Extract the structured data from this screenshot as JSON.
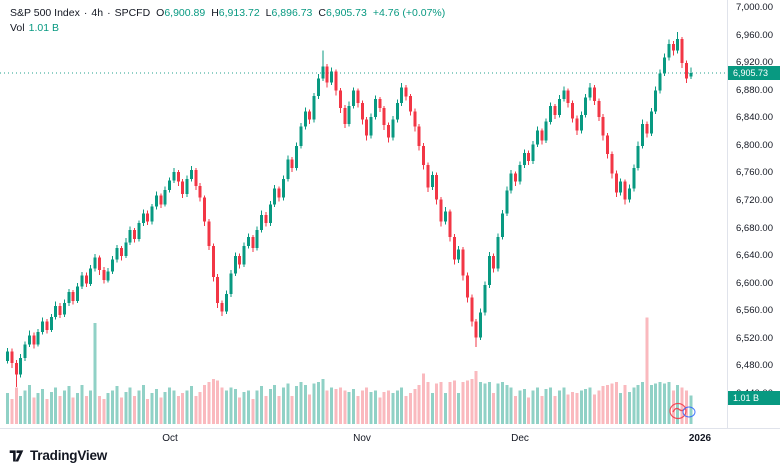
{
  "header": {
    "symbol": "S&P 500 Index",
    "separator": "·",
    "interval": "4h",
    "source": "SPCFD",
    "ohlc": {
      "o_label": "O",
      "o": "6,900.89",
      "h_label": "H",
      "h": "6,913.72",
      "l_label": "L",
      "l": "6,896.73",
      "c_label": "C",
      "c": "6,905.73"
    },
    "change": "+4.76 (+0.07%)",
    "vol_label": "Vol",
    "vol_value": "1.01 B"
  },
  "axis_badges": {
    "last_price": "6,905.73",
    "volume": "1.01 B"
  },
  "footer": {
    "brand": "TradingView"
  },
  "chart_data": {
    "type": "candlestick",
    "title": "S&P 500 Index · 4h · SPCFD",
    "last_price": 6905.73,
    "ohlc_format": "[open, high, low, close, volume_billions]",
    "colors": {
      "up": "#089981",
      "down": "#F23645",
      "vol_up": "rgba(8,153,129,0.45)",
      "vol_down": "rgba(242,54,69,0.35)"
    },
    "y_axis": {
      "min": 6440,
      "max": 7000,
      "step": 40,
      "ticks": [
        {
          "text": "7,000.00",
          "value": 7000
        },
        {
          "text": "6,960.00",
          "value": 6960
        },
        {
          "text": "6,920.00",
          "value": 6920
        },
        {
          "text": "6,880.00",
          "value": 6880
        },
        {
          "text": "6,840.00",
          "value": 6840
        },
        {
          "text": "6,800.00",
          "value": 6800
        },
        {
          "text": "6,760.00",
          "value": 6760
        },
        {
          "text": "6,720.00",
          "value": 6720
        },
        {
          "text": "6,680.00",
          "value": 6680
        },
        {
          "text": "6,640.00",
          "value": 6640
        },
        {
          "text": "6,600.00",
          "value": 6600
        },
        {
          "text": "6,560.00",
          "value": 6560
        },
        {
          "text": "6,520.00",
          "value": 6520
        },
        {
          "text": "6,480.00",
          "value": 6480
        },
        {
          "text": "6,440.00",
          "value": 6440
        }
      ]
    },
    "x_axis": {
      "ticks": [
        {
          "text": "Oct",
          "index": 37
        },
        {
          "text": "Nov",
          "index": 81
        },
        {
          "text": "Dec",
          "index": 117
        },
        {
          "text": "2026",
          "index": 158,
          "bold": true
        }
      ]
    },
    "candles": [
      [
        6488,
        6507,
        6484,
        6502,
        1.1
      ],
      [
        6502,
        6506,
        6478,
        6485,
        0.9
      ],
      [
        6485,
        6489,
        6450,
        6468,
        1.3
      ],
      [
        6468,
        6498,
        6464,
        6492,
        1.0
      ],
      [
        6492,
        6516,
        6488,
        6512,
        1.2
      ],
      [
        6512,
        6532,
        6508,
        6525,
        1.4
      ],
      [
        6525,
        6529,
        6506,
        6512,
        0.95
      ],
      [
        6512,
        6534,
        6509,
        6530,
        1.1
      ],
      [
        6530,
        6551,
        6526,
        6545,
        1.25
      ],
      [
        6545,
        6549,
        6528,
        6533,
        0.9
      ],
      [
        6533,
        6556,
        6530,
        6552,
        1.15
      ],
      [
        6552,
        6574,
        6548,
        6568,
        1.3
      ],
      [
        6568,
        6572,
        6550,
        6555,
        1.0
      ],
      [
        6555,
        6577,
        6552,
        6572,
        1.2
      ],
      [
        6572,
        6592,
        6568,
        6588,
        1.35
      ],
      [
        6588,
        6591,
        6570,
        6575,
        0.95
      ],
      [
        6575,
        6601,
        6572,
        6596,
        1.1
      ],
      [
        6596,
        6617,
        6592,
        6612,
        1.4
      ],
      [
        6612,
        6616,
        6595,
        6600,
        1.0
      ],
      [
        6600,
        6627,
        6597,
        6622,
        1.2
      ],
      [
        6622,
        6643,
        6618,
        6638,
        3.6
      ],
      [
        6638,
        6641,
        6613,
        6620,
        1.0
      ],
      [
        6620,
        6624,
        6600,
        6605,
        0.9
      ],
      [
        6605,
        6623,
        6602,
        6618,
        1.1
      ],
      [
        6618,
        6640,
        6614,
        6635,
        1.2
      ],
      [
        6635,
        6656,
        6631,
        6652,
        1.35
      ],
      [
        6652,
        6655,
        6634,
        6640,
        0.95
      ],
      [
        6640,
        6666,
        6637,
        6660,
        1.15
      ],
      [
        6660,
        6683,
        6656,
        6678,
        1.3
      ],
      [
        6678,
        6681,
        6660,
        6665,
        1.0
      ],
      [
        6665,
        6692,
        6661,
        6688,
        1.2
      ],
      [
        6688,
        6708,
        6684,
        6702,
        1.4
      ],
      [
        6702,
        6706,
        6685,
        6690,
        0.9
      ],
      [
        6690,
        6716,
        6686,
        6712,
        1.1
      ],
      [
        6712,
        6734,
        6708,
        6728,
        1.25
      ],
      [
        6728,
        6731,
        6710,
        6715,
        0.95
      ],
      [
        6715,
        6741,
        6712,
        6736,
        1.15
      ],
      [
        6736,
        6754,
        6732,
        6750,
        1.3
      ],
      [
        6750,
        6768,
        6746,
        6762,
        1.2
      ],
      [
        6762,
        6765,
        6742,
        6748,
        1.0
      ],
      [
        6748,
        6752,
        6724,
        6730,
        1.1
      ],
      [
        6730,
        6757,
        6726,
        6752,
        1.2
      ],
      [
        6752,
        6771,
        6748,
        6765,
        1.35
      ],
      [
        6765,
        6768,
        6736,
        6742,
        1.0
      ],
      [
        6742,
        6746,
        6719,
        6725,
        1.15
      ],
      [
        6725,
        6728,
        6684,
        6690,
        1.4
      ],
      [
        6690,
        6694,
        6649,
        6655,
        1.5
      ],
      [
        6655,
        6658,
        6603,
        6610,
        1.6
      ],
      [
        6610,
        6614,
        6565,
        6572,
        1.55
      ],
      [
        6572,
        6576,
        6553,
        6560,
        1.3
      ],
      [
        6560,
        6590,
        6556,
        6585,
        1.2
      ],
      [
        6585,
        6620,
        6581,
        6615,
        1.3
      ],
      [
        6615,
        6645,
        6611,
        6640,
        1.25
      ],
      [
        6640,
        6644,
        6622,
        6628,
        0.95
      ],
      [
        6628,
        6660,
        6624,
        6655,
        1.15
      ],
      [
        6655,
        6673,
        6651,
        6668,
        1.2
      ],
      [
        6668,
        6671,
        6646,
        6652,
        0.9
      ],
      [
        6652,
        6683,
        6648,
        6678,
        1.2
      ],
      [
        6678,
        6706,
        6674,
        6700,
        1.35
      ],
      [
        6700,
        6704,
        6683,
        6688,
        1.0
      ],
      [
        6688,
        6720,
        6684,
        6715,
        1.25
      ],
      [
        6715,
        6743,
        6711,
        6738,
        1.4
      ],
      [
        6738,
        6741,
        6719,
        6725,
        1.0
      ],
      [
        6725,
        6757,
        6721,
        6752,
        1.3
      ],
      [
        6752,
        6786,
        6748,
        6780,
        1.45
      ],
      [
        6780,
        6784,
        6762,
        6768,
        1.0
      ],
      [
        6768,
        6805,
        6764,
        6800,
        1.35
      ],
      [
        6800,
        6833,
        6796,
        6828,
        1.5
      ],
      [
        6828,
        6856,
        6824,
        6850,
        1.4
      ],
      [
        6850,
        6853,
        6832,
        6838,
        1.05
      ],
      [
        6838,
        6877,
        6834,
        6872,
        1.45
      ],
      [
        6872,
        6904,
        6868,
        6898,
        1.5
      ],
      [
        6898,
        6938,
        6894,
        6915,
        1.6
      ],
      [
        6915,
        6919,
        6885,
        6892,
        1.2
      ],
      [
        6892,
        6914,
        6888,
        6908,
        1.3
      ],
      [
        6908,
        6911,
        6873,
        6880,
        1.25
      ],
      [
        6880,
        6884,
        6848,
        6855,
        1.3
      ],
      [
        6855,
        6859,
        6826,
        6832,
        1.2
      ],
      [
        6832,
        6864,
        6828,
        6858,
        1.15
      ],
      [
        6858,
        6885,
        6854,
        6880,
        1.25
      ],
      [
        6880,
        6883,
        6856,
        6862,
        1.0
      ],
      [
        6862,
        6866,
        6831,
        6838,
        1.2
      ],
      [
        6838,
        6842,
        6808,
        6815,
        1.3
      ],
      [
        6815,
        6847,
        6811,
        6842,
        1.15
      ],
      [
        6842,
        6873,
        6838,
        6868,
        1.2
      ],
      [
        6868,
        6871,
        6849,
        6855,
        0.95
      ],
      [
        6855,
        6858,
        6823,
        6830,
        1.15
      ],
      [
        6830,
        6834,
        6805,
        6812,
        1.2
      ],
      [
        6812,
        6843,
        6808,
        6838,
        1.1
      ],
      [
        6838,
        6867,
        6834,
        6862,
        1.2
      ],
      [
        6862,
        6891,
        6858,
        6885,
        1.3
      ],
      [
        6885,
        6888,
        6866,
        6872,
        1.0
      ],
      [
        6872,
        6875,
        6844,
        6850,
        1.1
      ],
      [
        6850,
        6854,
        6821,
        6828,
        1.25
      ],
      [
        6828,
        6832,
        6793,
        6800,
        1.4
      ],
      [
        6800,
        6804,
        6766,
        6772,
        1.8
      ],
      [
        6772,
        6776,
        6733,
        6740,
        1.5
      ],
      [
        6740,
        6763,
        6736,
        6758,
        1.1
      ],
      [
        6758,
        6761,
        6715,
        6722,
        1.45
      ],
      [
        6722,
        6726,
        6683,
        6690,
        1.5
      ],
      [
        6690,
        6711,
        6686,
        6705,
        1.1
      ],
      [
        6705,
        6708,
        6661,
        6668,
        1.5
      ],
      [
        6668,
        6672,
        6628,
        6635,
        1.55
      ],
      [
        6635,
        6655,
        6630,
        6650,
        1.1
      ],
      [
        6650,
        6653,
        6605,
        6612,
        1.5
      ],
      [
        6612,
        6616,
        6573,
        6580,
        1.55
      ],
      [
        6580,
        6584,
        6538,
        6545,
        1.6
      ],
      [
        6545,
        6549,
        6508,
        6522,
        1.9
      ],
      [
        6522,
        6564,
        6518,
        6558,
        1.5
      ],
      [
        6558,
        6603,
        6554,
        6598,
        1.45
      ],
      [
        6598,
        6646,
        6594,
        6640,
        1.5
      ],
      [
        6640,
        6644,
        6616,
        6622,
        1.1
      ],
      [
        6622,
        6673,
        6618,
        6668,
        1.45
      ],
      [
        6668,
        6707,
        6664,
        6702,
        1.5
      ],
      [
        6702,
        6741,
        6698,
        6735,
        1.4
      ],
      [
        6735,
        6765,
        6731,
        6760,
        1.3
      ],
      [
        6760,
        6763,
        6742,
        6748,
        1.0
      ],
      [
        6748,
        6777,
        6744,
        6772,
        1.2
      ],
      [
        6772,
        6795,
        6768,
        6790,
        1.25
      ],
      [
        6790,
        6793,
        6772,
        6778,
        0.95
      ],
      [
        6778,
        6807,
        6774,
        6802,
        1.2
      ],
      [
        6802,
        6828,
        6798,
        6822,
        1.3
      ],
      [
        6822,
        6825,
        6802,
        6808,
        1.0
      ],
      [
        6808,
        6840,
        6804,
        6835,
        1.25
      ],
      [
        6835,
        6863,
        6831,
        6858,
        1.3
      ],
      [
        6858,
        6861,
        6839,
        6845,
        1.0
      ],
      [
        6845,
        6874,
        6841,
        6868,
        1.2
      ],
      [
        6868,
        6886,
        6864,
        6880,
        1.3
      ],
      [
        6880,
        6883,
        6856,
        6862,
        1.05
      ],
      [
        6862,
        6866,
        6834,
        6840,
        1.15
      ],
      [
        6840,
        6844,
        6816,
        6822,
        1.1
      ],
      [
        6822,
        6850,
        6818,
        6845,
        1.2
      ],
      [
        6845,
        6875,
        6841,
        6870,
        1.25
      ],
      [
        6870,
        6891,
        6866,
        6885,
        1.3
      ],
      [
        6885,
        6888,
        6859,
        6865,
        1.05
      ],
      [
        6865,
        6869,
        6836,
        6842,
        1.2
      ],
      [
        6842,
        6846,
        6808,
        6815,
        1.35
      ],
      [
        6815,
        6819,
        6782,
        6788,
        1.4
      ],
      [
        6788,
        6792,
        6753,
        6760,
        1.45
      ],
      [
        6760,
        6764,
        6726,
        6732,
        1.5
      ],
      [
        6732,
        6753,
        6728,
        6748,
        1.1
      ],
      [
        6748,
        6751,
        6715,
        6722,
        1.4
      ],
      [
        6722,
        6744,
        6718,
        6738,
        1.15
      ],
      [
        6738,
        6773,
        6734,
        6768,
        1.3
      ],
      [
        6768,
        6806,
        6764,
        6800,
        1.4
      ],
      [
        6800,
        6838,
        6796,
        6832,
        1.5
      ],
      [
        6832,
        6835,
        6812,
        6818,
        3.8
      ],
      [
        6818,
        6855,
        6814,
        6850,
        1.4
      ],
      [
        6850,
        6886,
        6846,
        6880,
        1.45
      ],
      [
        6880,
        6911,
        6876,
        6905,
        1.5
      ],
      [
        6905,
        6934,
        6901,
        6928,
        1.45
      ],
      [
        6928,
        6954,
        6924,
        6948,
        1.5
      ],
      [
        6948,
        6952,
        6931,
        6938,
        1.2
      ],
      [
        6938,
        6965,
        6934,
        6955,
        1.4
      ],
      [
        6955,
        6958,
        6913,
        6920,
        1.3
      ],
      [
        6920,
        6924,
        6891,
        6898,
        1.2
      ],
      [
        6900.89,
        6913.72,
        6896.73,
        6905.73,
        1.01
      ]
    ]
  }
}
